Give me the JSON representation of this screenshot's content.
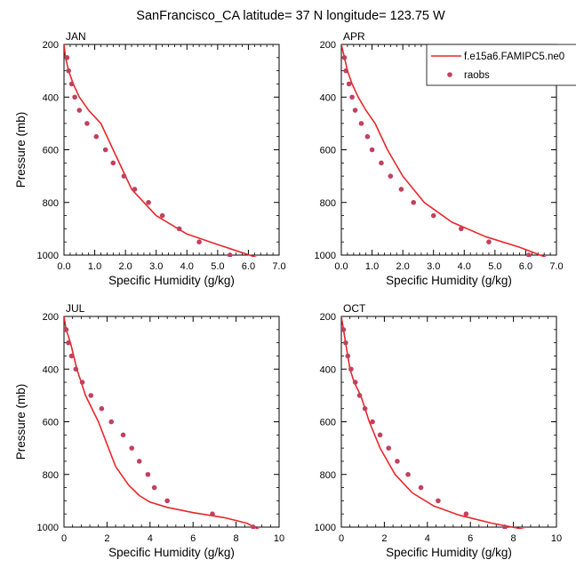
{
  "figure": {
    "title": "SanFrancisco_CA  latitude= 37 N longitude= 123.75 W"
  },
  "legend": {
    "model_label": "f.e15a6.FAMIPC5.ne0",
    "obs_label": "raobs",
    "placement": "top-right of APR panel"
  },
  "colors": {
    "model_line": "#e8262b",
    "obs_marker": "#c2405e",
    "axis": "#000000"
  },
  "chart_data": [
    {
      "type": "line",
      "panel_label": "JAN",
      "xlabel": "Specific Humidity (g/kg)",
      "ylabel": "Pressure (mb)",
      "xlim": [
        0,
        7
      ],
      "ylim": [
        1000,
        200
      ],
      "y_inverted": true,
      "x_ticks": [
        "0.0",
        "1.0",
        "2.0",
        "3.0",
        "4.0",
        "5.0",
        "6.0",
        "7.0"
      ],
      "y_ticks": [
        "200",
        "400",
        "600",
        "800",
        "1000"
      ],
      "series": [
        {
          "kind": "line",
          "x": [
            0.0,
            0.05,
            0.15,
            0.3,
            0.5,
            0.8,
            1.2,
            1.6,
            2.2,
            3.0,
            4.0,
            5.0,
            6.3
          ],
          "y": [
            200,
            250,
            300,
            350,
            400,
            450,
            500,
            600,
            750,
            850,
            920,
            960,
            1010
          ]
        },
        {
          "kind": "scatter",
          "x": [
            0.1,
            0.15,
            0.25,
            0.35,
            0.5,
            0.75,
            1.05,
            1.35,
            1.6,
            1.95,
            2.3,
            2.75,
            3.2,
            3.75,
            4.4,
            5.4
          ],
          "y": [
            250,
            300,
            350,
            400,
            450,
            500,
            550,
            600,
            650,
            700,
            750,
            800,
            850,
            900,
            950,
            1000
          ]
        }
      ]
    },
    {
      "type": "line",
      "panel_label": "APR",
      "xlabel": "Specific Humidity (g/kg)",
      "ylabel": "",
      "xlim": [
        0,
        7
      ],
      "ylim": [
        1000,
        200
      ],
      "y_inverted": true,
      "x_ticks": [
        "0.0",
        "1.0",
        "2.0",
        "3.0",
        "4.0",
        "5.0",
        "6.0",
        "7.0"
      ],
      "y_ticks": [
        "200",
        "400",
        "600",
        "800",
        "1000"
      ],
      "series": [
        {
          "kind": "line",
          "x": [
            0.0,
            0.1,
            0.2,
            0.35,
            0.55,
            0.8,
            1.1,
            1.5,
            2.0,
            2.7,
            3.6,
            4.7,
            5.8,
            6.7
          ],
          "y": [
            200,
            250,
            300,
            350,
            400,
            450,
            500,
            600,
            700,
            800,
            875,
            930,
            970,
            1010
          ]
        },
        {
          "kind": "scatter",
          "x": [
            0.1,
            0.15,
            0.25,
            0.35,
            0.45,
            0.65,
            0.85,
            1.0,
            1.3,
            1.6,
            1.95,
            2.35,
            3.0,
            3.9,
            4.8,
            6.1
          ],
          "y": [
            250,
            300,
            350,
            400,
            450,
            500,
            550,
            600,
            650,
            700,
            750,
            800,
            850,
            900,
            950,
            1000
          ]
        }
      ]
    },
    {
      "type": "line",
      "panel_label": "JUL",
      "xlabel": "Specific Humidity (g/kg)",
      "ylabel": "Pressure (mb)",
      "xlim": [
        0,
        10
      ],
      "ylim": [
        1000,
        200
      ],
      "y_inverted": true,
      "x_ticks": [
        "0",
        "2",
        "4",
        "6",
        "8",
        "10"
      ],
      "y_ticks": [
        "200",
        "400",
        "600",
        "800",
        "1000"
      ],
      "series": [
        {
          "kind": "line",
          "x": [
            0.0,
            0.1,
            0.3,
            0.6,
            1.0,
            1.6,
            2.4,
            3.0,
            3.5,
            4.0,
            4.8,
            6.0,
            7.5,
            8.5,
            9.1
          ],
          "y": [
            200,
            250,
            300,
            400,
            500,
            600,
            770,
            840,
            880,
            905,
            925,
            945,
            965,
            985,
            1010
          ]
        },
        {
          "kind": "scatter",
          "x": [
            0.1,
            0.2,
            0.35,
            0.55,
            0.85,
            1.25,
            1.75,
            2.2,
            2.75,
            3.15,
            3.5,
            3.9,
            4.2,
            4.8,
            6.9,
            8.8
          ],
          "y": [
            250,
            300,
            350,
            400,
            450,
            500,
            550,
            600,
            650,
            700,
            750,
            800,
            850,
            900,
            950,
            1000
          ]
        }
      ]
    },
    {
      "type": "line",
      "panel_label": "OCT",
      "xlabel": "Specific Humidity (g/kg)",
      "ylabel": "",
      "xlim": [
        0,
        10
      ],
      "ylim": [
        1000,
        200
      ],
      "y_inverted": true,
      "x_ticks": [
        "0",
        "2",
        "4",
        "6",
        "8",
        "10"
      ],
      "y_ticks": [
        "200",
        "400",
        "600",
        "800",
        "1000"
      ],
      "series": [
        {
          "kind": "line",
          "x": [
            0.0,
            0.1,
            0.2,
            0.4,
            0.6,
            0.9,
            1.3,
            1.8,
            2.5,
            3.3,
            4.3,
            5.5,
            7.0,
            8.6
          ],
          "y": [
            200,
            250,
            300,
            400,
            450,
            500,
            600,
            700,
            800,
            870,
            920,
            955,
            985,
            1010
          ]
        },
        {
          "kind": "scatter",
          "x": [
            0.1,
            0.2,
            0.3,
            0.45,
            0.65,
            0.85,
            1.1,
            1.45,
            1.8,
            2.2,
            2.6,
            3.1,
            3.7,
            4.5,
            5.8,
            7.6
          ],
          "y": [
            250,
            300,
            350,
            400,
            450,
            500,
            550,
            600,
            650,
            700,
            750,
            800,
            850,
            900,
            950,
            1000
          ]
        }
      ]
    }
  ]
}
